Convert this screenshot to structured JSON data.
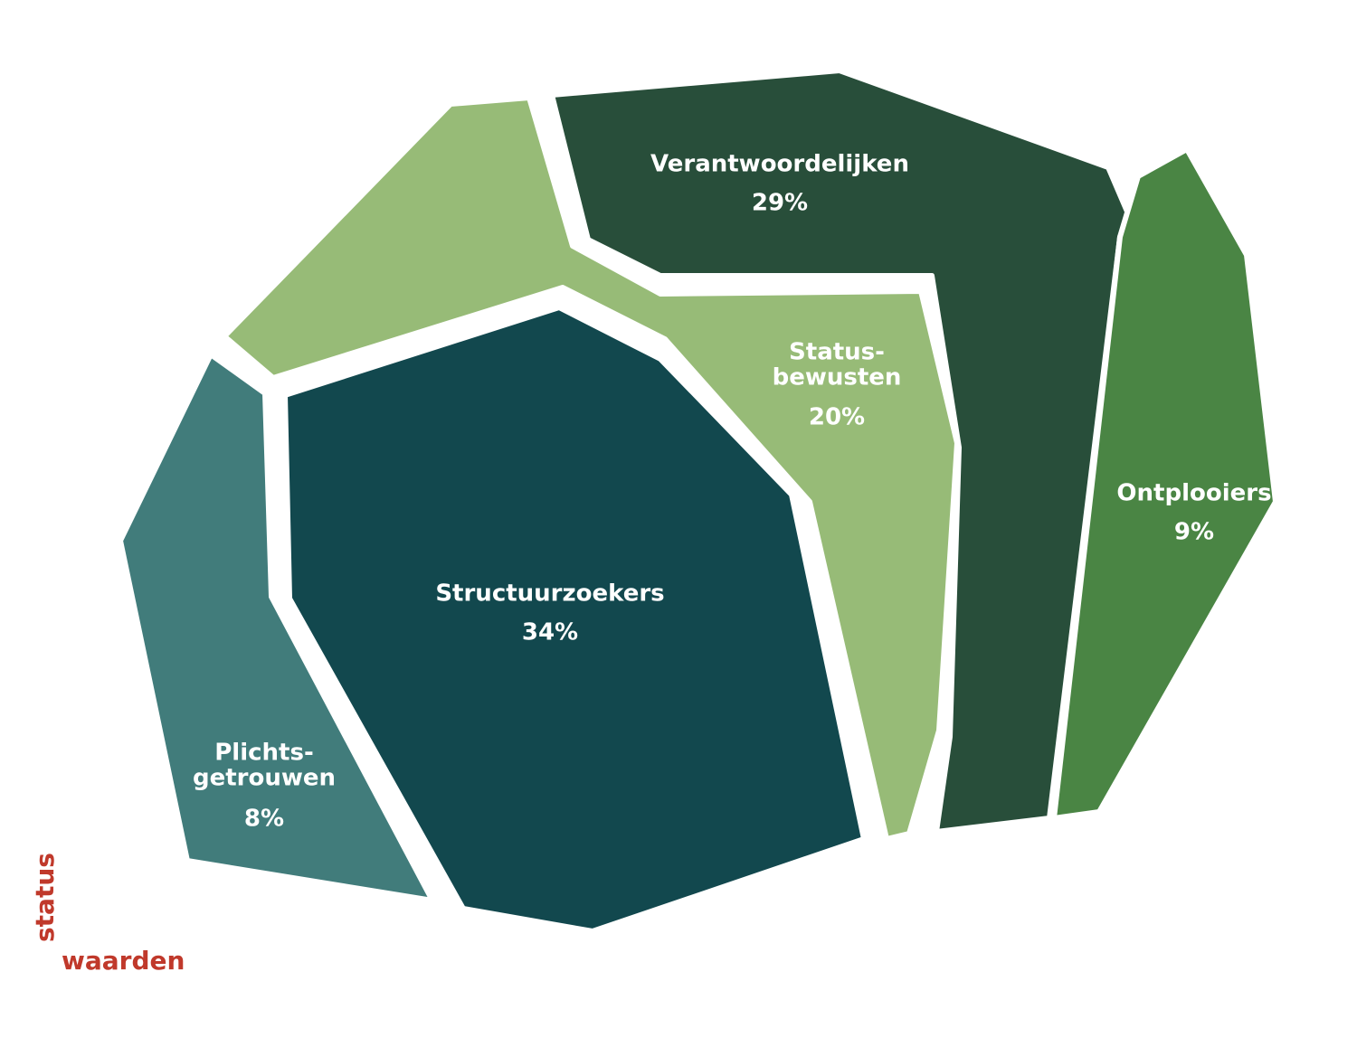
{
  "chart_data": {
    "type": "voronoi-treemap",
    "xlabel": "waarden",
    "ylabel": "status",
    "unit": "%",
    "segments": [
      {
        "name": "Verantwoordelijken",
        "label_lines": [
          "Verantwoordelijken"
        ],
        "value": 29,
        "value_label": "29%",
        "color": "#284e3a"
      },
      {
        "name": "Status-bewusten",
        "label_lines": [
          "Status-",
          "bewusten"
        ],
        "value": 20,
        "value_label": "20%",
        "color": "#97bb77"
      },
      {
        "name": "Ontplooiers",
        "label_lines": [
          "Ontplooiers"
        ],
        "value": 9,
        "value_label": "9%",
        "color": "#4a8544"
      },
      {
        "name": "Structuurzoekers",
        "label_lines": [
          "Structuurzoekers"
        ],
        "value": 34,
        "value_label": "34%",
        "color": "#12484e"
      },
      {
        "name": "Plichts-getrouwen",
        "label_lines": [
          "Plichts-",
          "getrouwen"
        ],
        "value": 8,
        "value_label": "8%",
        "color": "#417c7b"
      }
    ]
  }
}
